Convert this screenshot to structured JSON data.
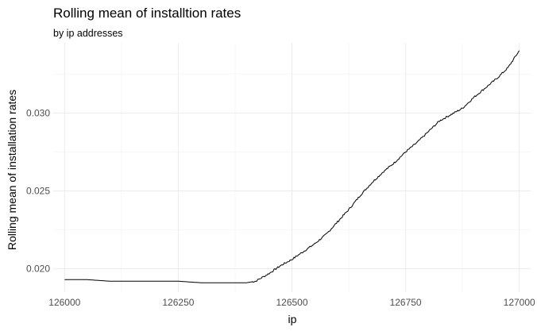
{
  "chart_data": {
    "type": "line",
    "title": "Rolling mean of installtion rates",
    "subtitle": "by ip addresses",
    "xlabel": "ip",
    "ylabel": "Rolling mean of installation rates",
    "xlim": [
      125975,
      127025
    ],
    "ylim": [
      0.0185,
      0.0345
    ],
    "xticks": [
      126000,
      126250,
      126500,
      126750,
      127000
    ],
    "xtick_labels": [
      "126000",
      "126250",
      "126500",
      "126750",
      "127000"
    ],
    "yticks": [
      0.02,
      0.025,
      0.03
    ],
    "ytick_labels": [
      "0.020",
      "0.025",
      "0.030"
    ],
    "grid": true,
    "series": [
      {
        "color": "#000000",
        "x": [
          126000,
          126050,
          126100,
          126150,
          126200,
          126250,
          126300,
          126350,
          126400,
          126420,
          126450,
          126475,
          126500,
          126525,
          126550,
          126575,
          126600,
          126625,
          126650,
          126675,
          126700,
          126725,
          126750,
          126775,
          126800,
          126825,
          126850,
          126875,
          126900,
          126925,
          126950,
          126975,
          127000
        ],
        "y": [
          0.0193,
          0.0193,
          0.0192,
          0.0192,
          0.0192,
          0.0192,
          0.0191,
          0.0191,
          0.0191,
          0.0192,
          0.0197,
          0.0202,
          0.0206,
          0.0211,
          0.0216,
          0.0222,
          0.023,
          0.0238,
          0.0247,
          0.0255,
          0.0262,
          0.0268,
          0.0275,
          0.0281,
          0.0288,
          0.0295,
          0.0299,
          0.0303,
          0.031,
          0.0316,
          0.0322,
          0.0329,
          0.034
        ]
      }
    ]
  }
}
